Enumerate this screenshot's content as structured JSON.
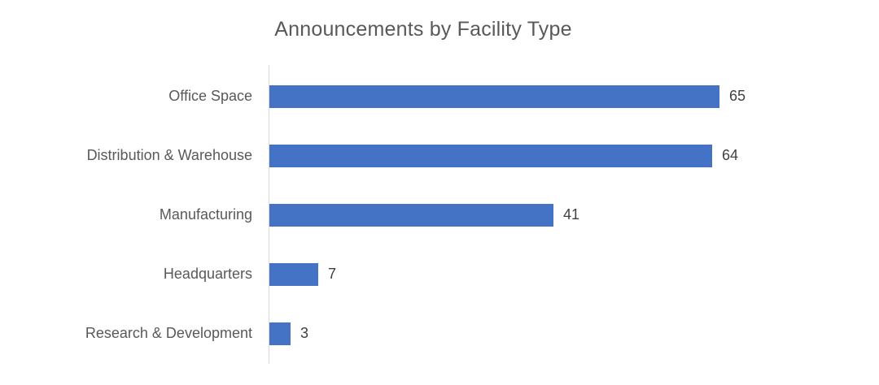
{
  "chart_data": {
    "type": "bar",
    "orientation": "horizontal",
    "title": "Announcements by Facility Type",
    "categories": [
      "Office Space",
      "Distribution & Warehouse",
      "Manufacturing",
      "Headquarters",
      "Research & Development"
    ],
    "values": [
      65,
      64,
      41,
      7,
      3
    ],
    "xlabel": "",
    "ylabel": "",
    "xlim": [
      0,
      65
    ],
    "grid": false,
    "legend": false,
    "data_labels_visible": true,
    "colors": {
      "bar": "#4472c4",
      "title_text": "#595959",
      "category_text": "#595959",
      "value_text": "#404040",
      "axis_line": "#d9d9d9",
      "background": "#ffffff"
    }
  }
}
